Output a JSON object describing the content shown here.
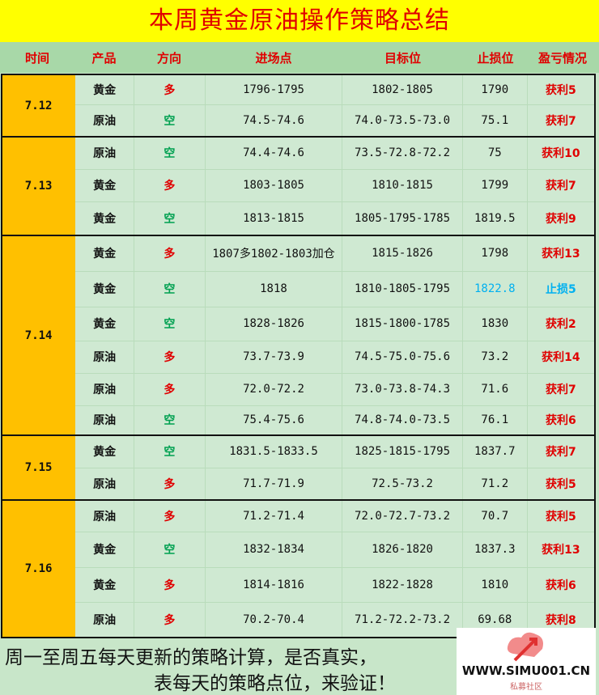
{
  "title": "本周黄金原油操作策略总结",
  "headers": [
    "时间",
    "产品",
    "方向",
    "进场点",
    "目标位",
    "止损位",
    "盈亏情况"
  ],
  "colors": {
    "title_bg": "#ffff00",
    "title_text": "#e00000",
    "date_bg": "#ffc000",
    "long": "#e00000",
    "short": "#00a050",
    "loss": "#00b0f0"
  },
  "groups": [
    {
      "date": "7.12",
      "rows": [
        {
          "product": "黄金",
          "direction": "多",
          "entry": "1796-1795",
          "target": "1802-1805",
          "stop": "1790",
          "result": "获利5"
        },
        {
          "product": "原油",
          "direction": "空",
          "entry": "74.5-74.6",
          "target": "74.0-73.5-73.0",
          "stop": "75.1",
          "result": "获利7"
        }
      ]
    },
    {
      "date": "7.13",
      "rows": [
        {
          "product": "原油",
          "direction": "空",
          "entry": "74.4-74.6",
          "target": "73.5-72.8-72.2",
          "stop": "75",
          "result": "获利10"
        },
        {
          "product": "黄金",
          "direction": "多",
          "entry": "1803-1805",
          "target": "1810-1815",
          "stop": "1799",
          "result": "获利7"
        },
        {
          "product": "黄金",
          "direction": "空",
          "entry": "1813-1815",
          "target": "1805-1795-1785",
          "stop": "1819.5",
          "result": "获利9"
        }
      ]
    },
    {
      "date": "7.14",
      "rows": [
        {
          "product": "黄金",
          "direction": "多",
          "entry": "1807多1802-1803加仓",
          "target": "1815-1826",
          "stop": "1798",
          "result": "获利13"
        },
        {
          "product": "黄金",
          "direction": "空",
          "entry": "1818",
          "target": "1810-1805-1795",
          "stop": "1822.8",
          "result": "止损5"
        },
        {
          "product": "黄金",
          "direction": "空",
          "entry": "1828-1826",
          "target": "1815-1800-1785",
          "stop": "1830",
          "result": "获利2"
        },
        {
          "product": "原油",
          "direction": "多",
          "entry": "73.7-73.9",
          "target": "74.5-75.0-75.6",
          "stop": "73.2",
          "result": "获利14"
        },
        {
          "product": "原油",
          "direction": "多",
          "entry": "72.0-72.2",
          "target": "73.0-73.8-74.3",
          "stop": "71.6",
          "result": "获利7"
        },
        {
          "product": "原油",
          "direction": "空",
          "entry": "75.4-75.6",
          "target": "74.8-74.0-73.5",
          "stop": "76.1",
          "result": "获利6"
        }
      ]
    },
    {
      "date": "7.15",
      "rows": [
        {
          "product": "黄金",
          "direction": "空",
          "entry": "1831.5-1833.5",
          "target": "1825-1815-1795",
          "stop": "1837.7",
          "result": "获利7"
        },
        {
          "product": "原油",
          "direction": "多",
          "entry": "71.7-71.9",
          "target": "72.5-73.2",
          "stop": "71.2",
          "result": "获利5"
        }
      ]
    },
    {
      "date": "7.16",
      "rows": [
        {
          "product": "原油",
          "direction": "多",
          "entry": "71.2-71.4",
          "target": "72.0-72.7-73.2",
          "stop": "70.7",
          "result": "获利5"
        },
        {
          "product": "黄金",
          "direction": "空",
          "entry": "1832-1834",
          "target": "1826-1820",
          "stop": "1837.3",
          "result": "获利13"
        },
        {
          "product": "黄金",
          "direction": "多",
          "entry": "1814-1816",
          "target": "1822-1828",
          "stop": "1810",
          "result": "获利6"
        },
        {
          "product": "原油",
          "direction": "多",
          "entry": "70.2-70.4",
          "target": "71.2-72.2-73.2",
          "stop": "69.68",
          "result": "获利8"
        }
      ]
    }
  ],
  "footer": {
    "line1": "周一至周五每天更新的策略计算，是否真实，",
    "line2": "表每天的策略点位，来验证！"
  },
  "logo": {
    "url": "WWW.SIMU001.CN",
    "sub": "私募社区"
  }
}
